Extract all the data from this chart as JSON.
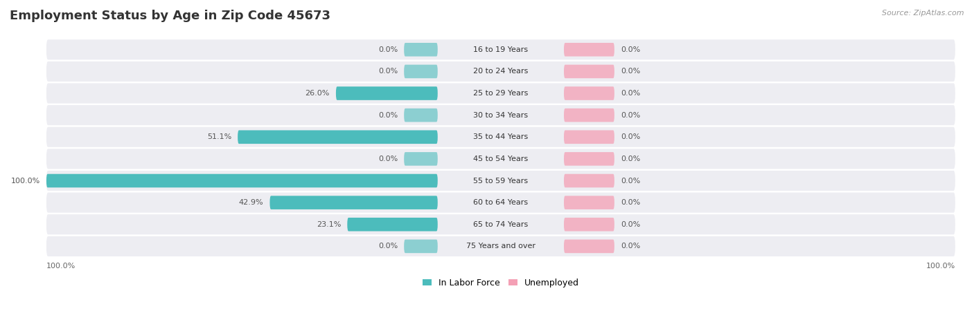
{
  "title": "Employment Status by Age in Zip Code 45673",
  "source": "Source: ZipAtlas.com",
  "categories": [
    "16 to 19 Years",
    "20 to 24 Years",
    "25 to 29 Years",
    "30 to 34 Years",
    "35 to 44 Years",
    "45 to 54 Years",
    "55 to 59 Years",
    "60 to 64 Years",
    "65 to 74 Years",
    "75 Years and over"
  ],
  "in_labor_force": [
    0.0,
    0.0,
    26.0,
    0.0,
    51.1,
    0.0,
    100.0,
    42.9,
    23.1,
    0.0
  ],
  "unemployed": [
    0.0,
    0.0,
    0.0,
    0.0,
    0.0,
    0.0,
    0.0,
    0.0,
    0.0,
    0.0
  ],
  "labor_color": "#4CBCBC",
  "unemployed_color": "#F4A0B5",
  "row_bg_color": "#EDEDF2",
  "max_value": 100.0,
  "x_left_label": "100.0%",
  "x_right_label": "100.0%",
  "legend_labor": "In Labor Force",
  "legend_unemployed": "Unemployed",
  "title_fontsize": 13,
  "label_fontsize": 8,
  "category_fontsize": 8,
  "source_fontsize": 8
}
